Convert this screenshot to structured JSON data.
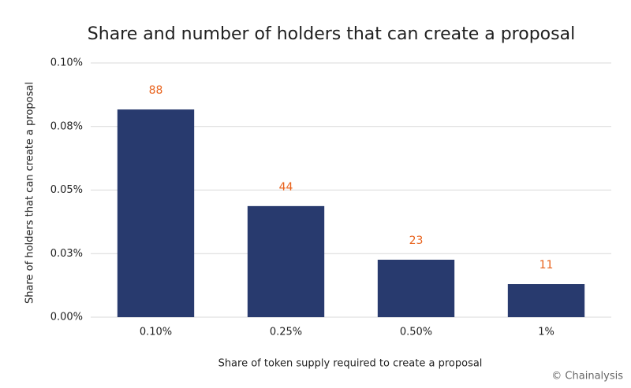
{
  "chart_data": {
    "type": "bar",
    "title": "Share and number of holders that can create a proposal",
    "x_label": "Share of token supply required to create a proposal",
    "y_label": "Share of holders that can create a proposal",
    "categories": [
      "0.10%",
      "0.25%",
      "0.50%",
      "1%"
    ],
    "values": [
      0.0817,
      0.0437,
      0.0226,
      0.013
    ],
    "holder_counts": [
      88,
      44,
      23,
      11
    ],
    "color": "#283a6e",
    "ylim": [
      0,
      0.1
    ],
    "yticks": [
      {
        "value": 0,
        "label": "0.00%"
      },
      {
        "value": 0.025,
        "label": "0.03%"
      },
      {
        "value": 0.05,
        "label": "0.05%"
      },
      {
        "value": 0.075,
        "label": "0.08%"
      },
      {
        "value": 0.1,
        "label": "0.10%"
      }
    ],
    "grid": true,
    "source": "© Chainalysis"
  }
}
